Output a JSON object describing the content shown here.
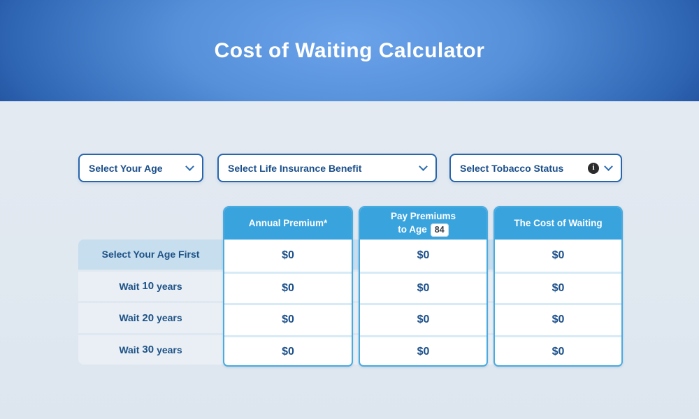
{
  "hero": {
    "title": "Cost of Waiting Calculator"
  },
  "filters": {
    "age": {
      "label": "Select Your Age"
    },
    "benefit": {
      "label": "Select Life Insurance Benefit"
    },
    "tobacco": {
      "label": "Select Tobacco Status"
    }
  },
  "icons": {
    "info_glyph": "i"
  },
  "table": {
    "columns": [
      {
        "title": "Annual Premium*"
      },
      {
        "title_line1": "Pay Premiums",
        "title_line2": "to Age",
        "badge": "84"
      },
      {
        "title": "The Cost of Waiting"
      }
    ],
    "rows": [
      {
        "label": "Select Your Age First"
      },
      {
        "prefix": "Wait",
        "number": "10",
        "suffix": "years"
      },
      {
        "prefix": "Wait",
        "number": "20",
        "suffix": "years"
      },
      {
        "prefix": "Wait",
        "number": "30",
        "suffix": "years"
      }
    ],
    "values": [
      [
        "$0",
        "$0",
        "$0"
      ],
      [
        "$0",
        "$0",
        "$0"
      ],
      [
        "$0",
        "$0",
        "$0"
      ],
      [
        "$0",
        "$0",
        "$0"
      ]
    ]
  },
  "colors": {
    "hero_center": "#6ba3ea",
    "hero_edge": "#18438f",
    "select_border": "#2766ac",
    "card_border": "#4aabdf",
    "card_header": "#39a3de",
    "text_navy": "#1b4f8a",
    "row_highlight": "#c6deee",
    "row_alt": "#e9eff5",
    "page_bg": "#e3e9f1"
  }
}
